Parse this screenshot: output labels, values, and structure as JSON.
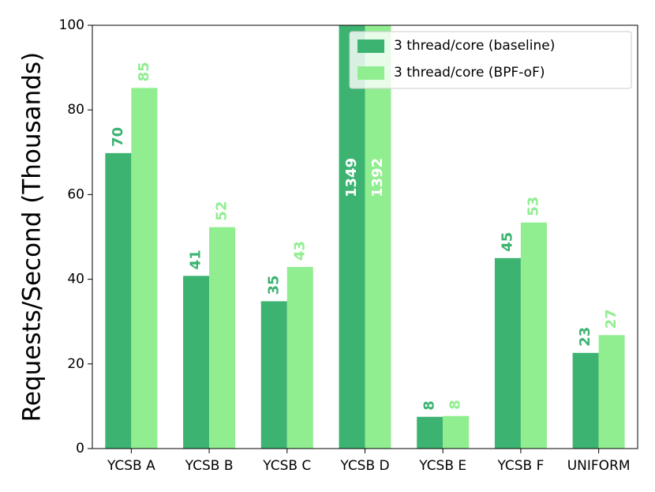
{
  "chart_data": {
    "type": "bar",
    "y_label": "Requests/Second (Thousands)",
    "categories": [
      "YCSB A",
      "YCSB B",
      "YCSB C",
      "YCSB D",
      "YCSB E",
      "YCSB F",
      "UNIFORM"
    ],
    "series": [
      {
        "name": "3 thread/core (baseline)",
        "color": "#3cb371",
        "values": [
          69.8,
          40.8,
          34.8,
          1349,
          7.5,
          45.0,
          22.6
        ],
        "value_labels": [
          "70",
          "41",
          "35",
          "1349",
          "8",
          "45",
          "23"
        ]
      },
      {
        "name": "3 thread/core (BPF-oF)",
        "color": "#90ee90",
        "values": [
          85.2,
          52.3,
          42.9,
          1392,
          7.7,
          53.4,
          26.8
        ],
        "value_labels": [
          "85",
          "52",
          "43",
          "1392",
          "8",
          "53",
          "27"
        ]
      }
    ],
    "ylim": [
      0,
      100
    ],
    "yticks": [
      0,
      20,
      40,
      60,
      80,
      100
    ],
    "legend": "upper right"
  }
}
